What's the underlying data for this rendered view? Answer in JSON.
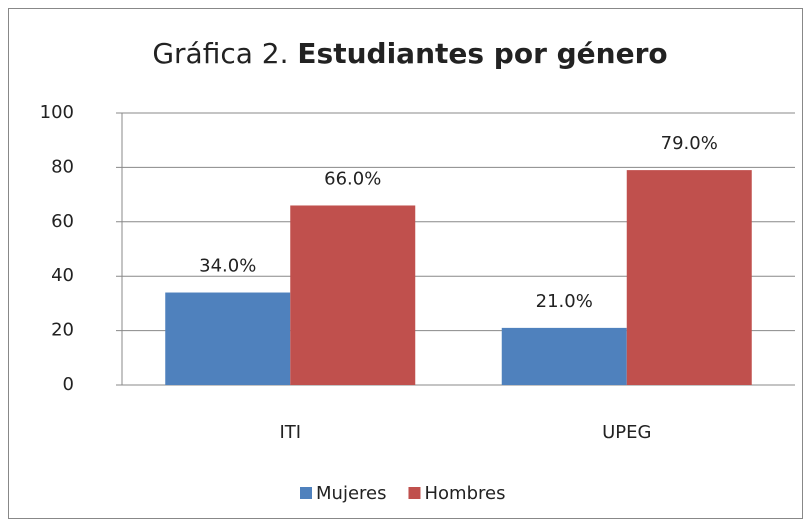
{
  "chart_data": {
    "type": "bar",
    "title": [
      "Gráfica 2.",
      "Estudiantes por género"
    ],
    "categories": [
      "ITI",
      "UPEG"
    ],
    "series": [
      {
        "name": "Mujeres",
        "color": "#4f81bd",
        "values": [
          34,
          21
        ],
        "value_labels": [
          "34.0%",
          "21.0%"
        ]
      },
      {
        "name": "Hombres",
        "color": "#c0504d",
        "values": [
          66,
          79
        ],
        "value_labels": [
          "66.0%",
          "79.0%"
        ]
      }
    ],
    "ylim": [
      0,
      100
    ],
    "yticks": [
      0,
      20,
      40,
      60,
      80,
      100
    ],
    "grid": true,
    "legend": "bottom"
  }
}
